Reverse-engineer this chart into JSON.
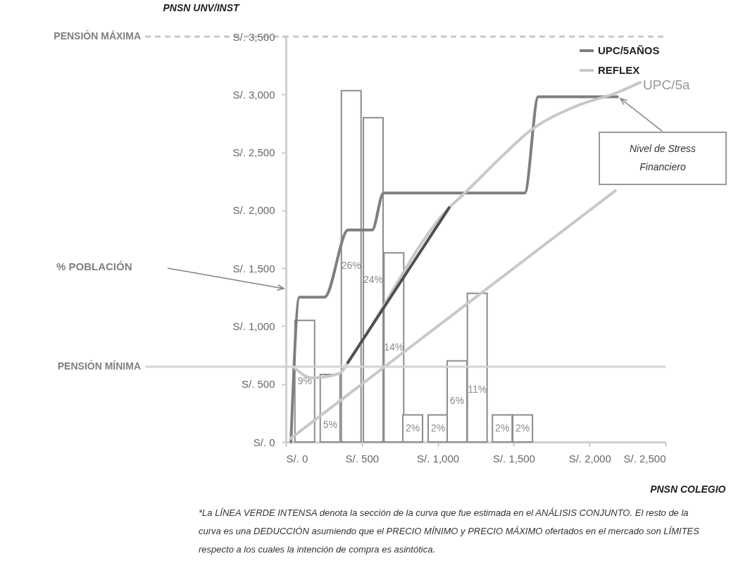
{
  "chart_data": {
    "type": "line",
    "xlabel": "PNSN COLEGIO",
    "ylabel": "PNSN UNV/INST",
    "xlim": [
      0,
      2500
    ],
    "xticks": [
      {
        "value": 0,
        "label": "S/. 0"
      },
      {
        "value": 500,
        "label": "S/. 500"
      },
      {
        "value": 1000,
        "label": "S/. 1,000"
      },
      {
        "value": 1500,
        "label": "S/. 1,500"
      },
      {
        "value": 2000,
        "label": "S/. 2,000"
      },
      {
        "value": 2500,
        "label": "S/. 2,500"
      }
    ],
    "ylim": [
      0,
      3500
    ],
    "yticks": [
      {
        "value": 0,
        "label": "S/. 0"
      },
      {
        "value": 500,
        "label": "S/. 500"
      },
      {
        "value": 1000,
        "label": "S/. 1,000"
      },
      {
        "value": 1500,
        "label": "S/. 1,500"
      },
      {
        "value": 2000,
        "label": "S/. 2,000"
      },
      {
        "value": 2500,
        "label": "S/. 2,500"
      },
      {
        "value": 3000,
        "label": "S/. 3,000"
      },
      {
        "value": 3500,
        "label": "S/. 3,500"
      }
    ],
    "y2lim": [
      0,
      30
    ],
    "legend": "top right",
    "series": [
      {
        "type": "bar",
        "axis": "y2",
        "color": "#ffffff",
        "x": [
          124,
          291,
          430,
          575,
          711,
          835,
          1002,
          1127,
          1260,
          1425,
          1559
        ],
        "values": [
          9,
          5,
          26,
          24,
          14,
          2,
          2,
          6,
          11,
          2,
          2
        ],
        "value_labels": [
          "9%",
          "5%",
          "26%",
          "24%",
          "14%",
          "2%",
          "2%",
          "6%",
          "11%",
          "2%",
          "2%"
        ]
      },
      {
        "type": "line",
        "name": "UPC/5AÑOS",
        "color": "#7f7f7f",
        "x": [
          33,
          89,
          254,
          410,
          568,
          643,
          1573,
          1662,
          2183
        ],
        "values": [
          0,
          1250,
          1250,
          1830,
          1830,
          2150,
          2150,
          2980,
          2980
        ]
      },
      {
        "type": "line",
        "name": "REFLEX",
        "color": "#c8c8c8",
        "x": [
          52,
          174,
          357,
          408,
          1075,
          1169,
          1413,
          1606,
          1897,
          2188,
          2333
        ],
        "values": [
          645,
          553,
          595,
          686,
          2023,
          2139,
          2454,
          2685,
          2892,
          3020,
          3104
        ]
      },
      {
        "type": "line",
        "color": "#505050",
        "x": [
          408,
          1075
        ],
        "values": [
          686,
          2023
        ]
      },
      {
        "type": "line",
        "color": "#c8c8c8",
        "x": [
          30,
          2170
        ],
        "values": [
          30,
          2170
        ]
      }
    ],
    "ref_lines": [
      {
        "axis": "y",
        "value": 3500,
        "label": "PENSIÓN MÁXIMA",
        "line_style": "dashed",
        "color": "#c8c8c8"
      },
      {
        "axis": "y",
        "value": 650,
        "label": "PENSIÓN MÍNIMA",
        "color": "#d4d4d4"
      }
    ],
    "annotations": [
      "% POBLACIÓN",
      {
        "text": "UPC/5a",
        "x": 2333,
        "y": 3104
      },
      {
        "text": "Nivel de Stress Financiero",
        "x": 2183,
        "y": 2980
      },
      "*La LÍNEA VERDE INTENSA denota la sección de la curva que fue estimada en el ANÁLISIS CONJUNTO. El resto de la curva es una DEDUCCIÓN asumiendo que el PRECIO MÍNIMO y PRECIO MÁXIMO ofertados en el mercado son LÍMITES respecto a los cuales la intención de compra es asintótica."
    ]
  }
}
